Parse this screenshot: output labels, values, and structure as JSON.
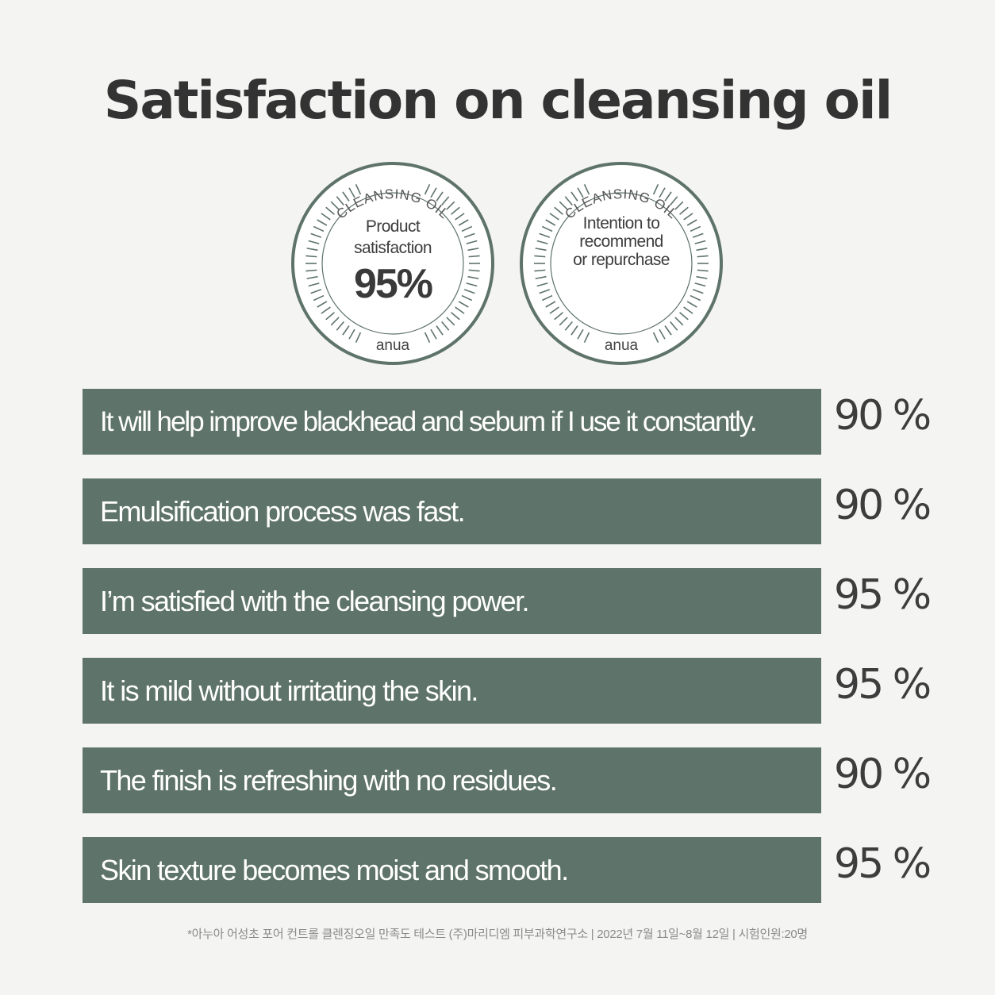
{
  "title": "Satisfaction on cleansing oil",
  "badges": [
    {
      "arc_text": "CLEANSING OIL",
      "label_lines": [
        "Product",
        "satisfaction"
      ],
      "value": "95%",
      "brand": "anua"
    },
    {
      "arc_text": "CLEANSING OIL",
      "label_lines": [
        "Intention to",
        "recommend",
        "or repurchase"
      ],
      "value": "",
      "brand": "anua"
    }
  ],
  "results": [
    {
      "statement": "It will help improve blackhead and sebum if I use it constantly.",
      "percent": "90 %"
    },
    {
      "statement": "Emulsification process was fast.",
      "percent": "90 %"
    },
    {
      "statement": "I’m satisfied with the cleansing power.",
      "percent": "95 %"
    },
    {
      "statement": "It is mild without irritating the skin.",
      "percent": "95 %"
    },
    {
      "statement": "The finish is refreshing with no residues.",
      "percent": "90 %"
    },
    {
      "statement": "Skin texture becomes moist and smooth.",
      "percent": "95 %"
    }
  ],
  "footnote": "*아누아 어성초 포어 컨트롤 클렌징오일 만족도 테스트 (주)마리디엠 피부과학연구소 | 2022년 7월 11일~8월 12일 | 시험인원:20명",
  "colors": {
    "background": "#f4f4f3",
    "bar": "#5e7369",
    "badge_stroke": "#5e7369",
    "text_dark": "#333333"
  }
}
